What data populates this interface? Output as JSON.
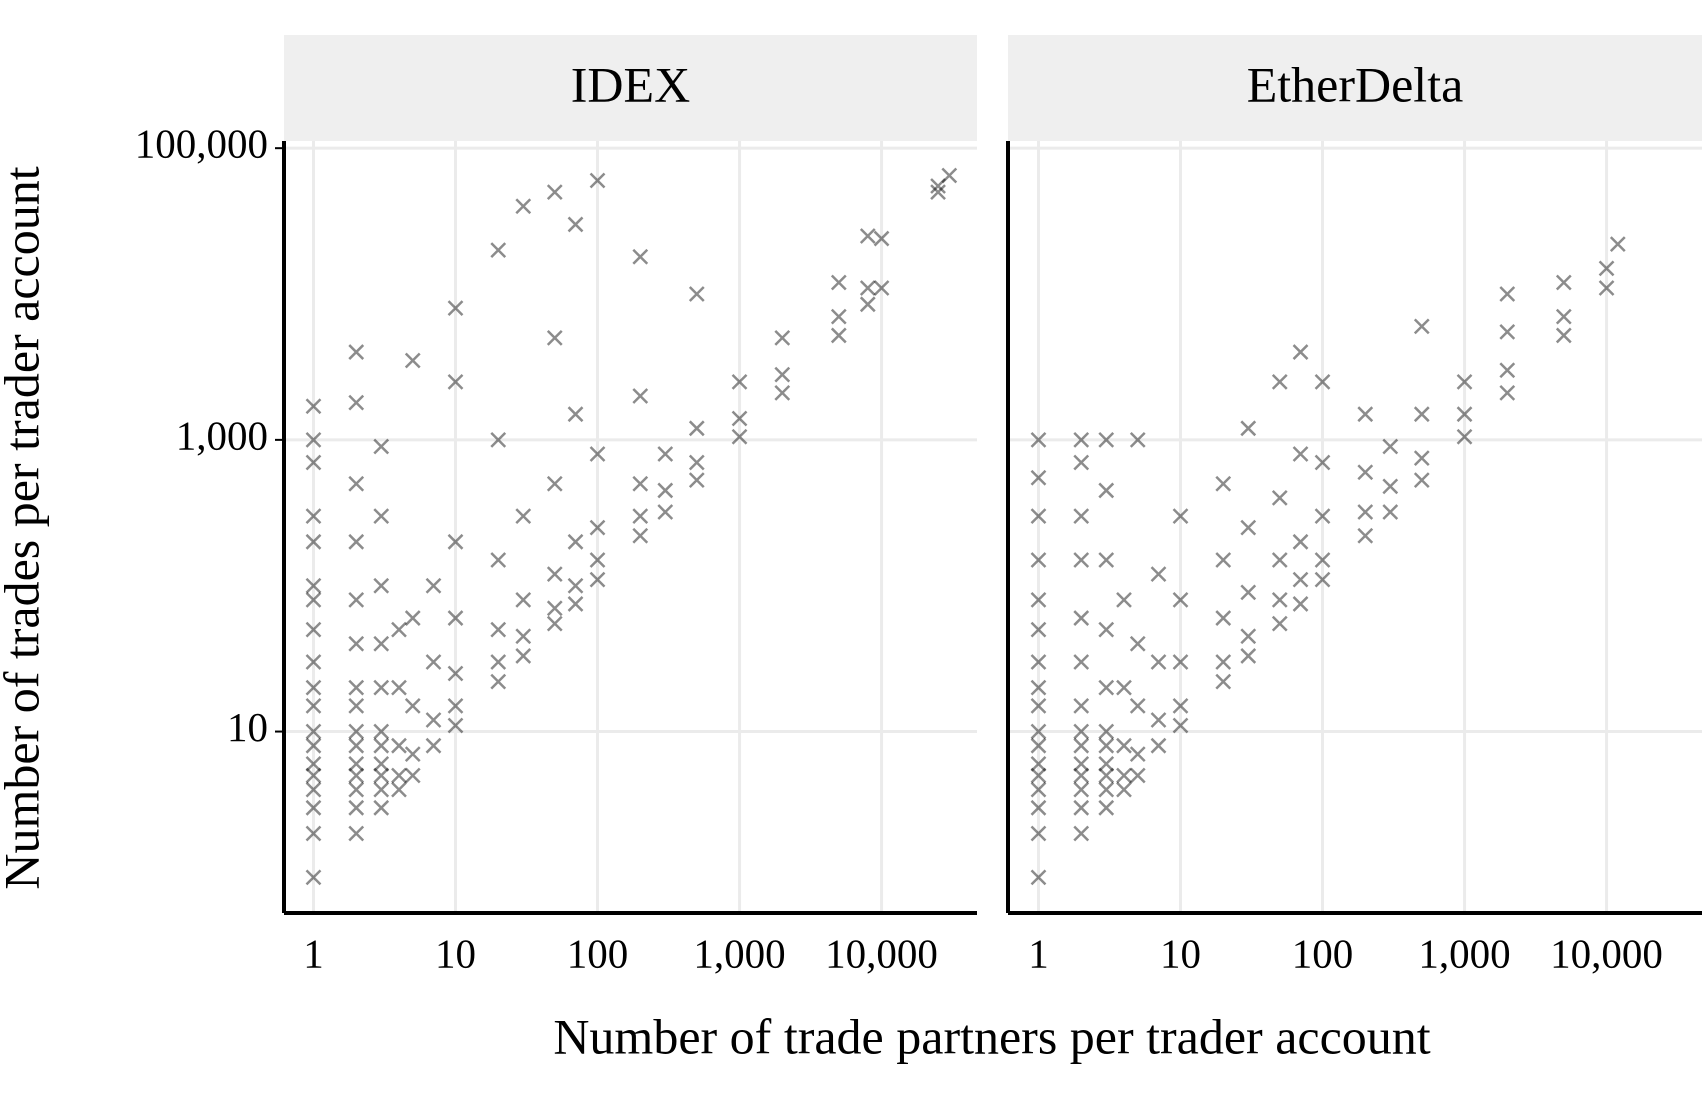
{
  "xlabel": "Number of trade partners per trader account",
  "ylabel": "Number of trades per trader account",
  "chart_data": [
    {
      "type": "scatter",
      "title": "IDEX",
      "color": "#000000",
      "log_x": true,
      "log_y": true,
      "grid": true,
      "xlim": [
        0.62,
        47000
      ],
      "ylim": [
        0.57,
        112000
      ],
      "xticks": [
        1,
        10,
        100,
        {
          "value": 1000,
          "label": "1,000"
        },
        {
          "value": 10000,
          "label": "10,000"
        }
      ],
      "yticks": [
        10,
        {
          "value": 1000,
          "label": "1,000"
        },
        {
          "value": 100000,
          "label": "100,000"
        }
      ],
      "x": [
        1,
        1,
        1,
        1,
        1,
        1,
        1,
        1,
        1,
        1,
        1,
        1,
        1,
        1,
        1,
        1,
        1,
        1,
        1,
        2,
        2,
        2,
        2,
        2,
        2,
        2,
        2,
        2,
        2,
        2,
        2,
        2,
        2,
        2,
        3,
        3,
        3,
        3,
        3,
        3,
        3,
        3,
        3,
        3,
        3,
        4,
        4,
        4,
        4,
        4,
        5,
        5,
        5,
        5,
        5,
        7,
        7,
        7,
        7,
        10,
        10,
        10,
        10,
        10,
        10,
        10,
        20,
        20,
        20,
        20,
        20,
        20,
        30,
        30,
        30,
        30,
        30,
        50,
        50,
        50,
        50,
        50,
        50,
        70,
        70,
        70,
        70,
        70,
        100,
        100,
        100,
        100,
        100,
        200,
        200,
        200,
        200,
        200,
        300,
        300,
        300,
        500,
        500,
        500,
        500,
        1000,
        1000,
        1000,
        2000,
        2000,
        2000,
        5000,
        5000,
        5000,
        8000,
        8000,
        8000,
        10000,
        10000,
        25000,
        25000,
        30000
      ],
      "y": [
        1,
        2,
        3,
        4,
        5,
        6,
        8,
        10,
        15,
        20,
        30,
        50,
        80,
        100,
        200,
        300,
        700,
        1000,
        1700,
        2,
        3,
        4,
        5,
        6,
        8,
        10,
        15,
        20,
        40,
        80,
        200,
        500,
        1800,
        4000,
        3,
        4,
        5,
        6,
        8,
        10,
        20,
        40,
        100,
        300,
        900,
        4,
        5,
        8,
        20,
        50,
        5,
        7,
        15,
        60,
        3500,
        8,
        12,
        30,
        100,
        11,
        15,
        25,
        60,
        200,
        2500,
        8000,
        22,
        30,
        50,
        150,
        1000,
        20000,
        33,
        45,
        80,
        300,
        40000,
        55,
        70,
        120,
        500,
        5000,
        50000,
        75,
        100,
        200,
        1500,
        30000,
        110,
        150,
        250,
        800,
        60000,
        220,
        300,
        500,
        2000,
        18000,
        320,
        450,
        800,
        530,
        700,
        1200,
        10000,
        1050,
        1400,
        2500,
        2100,
        2800,
        5000,
        5200,
        7000,
        12000,
        8500,
        11000,
        25000,
        11000,
        24000,
        50000,
        55000,
        65000
      ]
    },
    {
      "type": "scatter",
      "title": "EtherDelta",
      "color": "#000000",
      "log_x": true,
      "log_y": true,
      "grid": true,
      "xlim": [
        0.61,
        47000
      ],
      "ylim": [
        0.57,
        112000
      ],
      "xticks": [
        1,
        10,
        100,
        {
          "value": 1000,
          "label": "1,000"
        },
        {
          "value": 10000,
          "label": "10,000"
        }
      ],
      "yticks": [
        10,
        1000,
        100000
      ],
      "x": [
        1,
        1,
        1,
        1,
        1,
        1,
        1,
        1,
        1,
        1,
        1,
        1,
        1,
        1,
        1,
        1,
        1,
        2,
        2,
        2,
        2,
        2,
        2,
        2,
        2,
        2,
        2,
        2,
        2,
        2,
        2,
        3,
        3,
        3,
        3,
        3,
        3,
        3,
        3,
        3,
        3,
        3,
        4,
        4,
        4,
        4,
        4,
        5,
        5,
        5,
        5,
        5,
        7,
        7,
        7,
        7,
        10,
        10,
        10,
        10,
        10,
        20,
        20,
        20,
        20,
        20,
        30,
        30,
        30,
        30,
        30,
        50,
        50,
        50,
        50,
        50,
        70,
        70,
        70,
        70,
        70,
        100,
        100,
        100,
        100,
        100,
        200,
        200,
        200,
        200,
        300,
        300,
        300,
        500,
        500,
        500,
        500,
        1000,
        1000,
        1000,
        2000,
        2000,
        2000,
        2000,
        5000,
        5000,
        5000,
        10000,
        10000,
        12000
      ],
      "y": [
        1,
        2,
        3,
        4,
        5,
        6,
        8,
        10,
        15,
        20,
        30,
        50,
        80,
        150,
        300,
        550,
        1000,
        2,
        3,
        4,
        5,
        6,
        8,
        10,
        15,
        30,
        60,
        150,
        300,
        700,
        1000,
        3,
        4,
        5,
        6,
        8,
        10,
        20,
        50,
        150,
        450,
        1000,
        4,
        5,
        8,
        20,
        80,
        5,
        7,
        15,
        40,
        1000,
        8,
        12,
        30,
        120,
        11,
        15,
        30,
        80,
        300,
        22,
        30,
        60,
        150,
        500,
        33,
        45,
        90,
        250,
        1200,
        55,
        80,
        150,
        400,
        2500,
        75,
        110,
        200,
        800,
        4000,
        110,
        150,
        300,
        700,
        2500,
        220,
        320,
        600,
        1500,
        320,
        480,
        900,
        530,
        750,
        1500,
        6000,
        1050,
        1500,
        2500,
        2100,
        3000,
        5500,
        10000,
        5200,
        7000,
        12000,
        11000,
        15000,
        22000
      ]
    }
  ]
}
